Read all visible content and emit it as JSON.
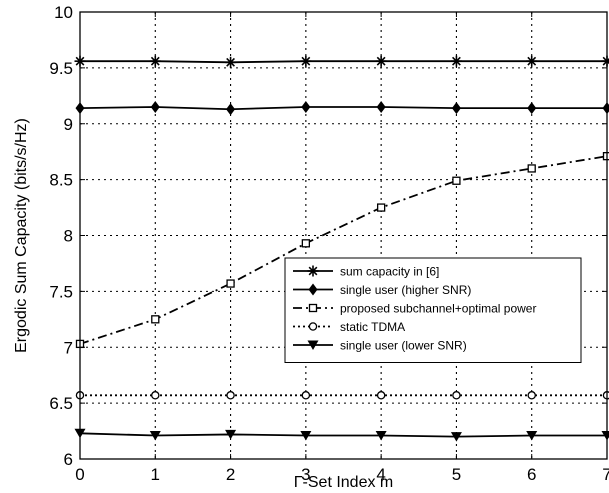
{
  "chart_data": {
    "type": "line",
    "xlabel": "Γ-Set Index m",
    "ylabel": "Ergodic Sum Capacity (bits/s/Hz)",
    "xlim": [
      0,
      7
    ],
    "ylim": [
      6,
      10
    ],
    "grid": true,
    "legend_position": "lower-right",
    "x": [
      0,
      1,
      2,
      3,
      4,
      5,
      6,
      7
    ],
    "xticks": [
      "0",
      "1",
      "2",
      "3",
      "4",
      "5",
      "6",
      "7"
    ],
    "yticks": [
      "6",
      "6.5",
      "7",
      "7.5",
      "8",
      "8.5",
      "9",
      "9.5",
      "10"
    ],
    "series": [
      {
        "name": "sum capacity in [6]",
        "marker": "star",
        "line": "solid",
        "values": [
          9.56,
          9.56,
          9.55,
          9.56,
          9.56,
          9.56,
          9.56,
          9.56
        ]
      },
      {
        "name": "single user (higher SNR)",
        "marker": "diamond",
        "line": "solid",
        "values": [
          9.14,
          9.15,
          9.13,
          9.15,
          9.15,
          9.14,
          9.14,
          9.14
        ]
      },
      {
        "name": "proposed subchannel+optimal power",
        "marker": "square",
        "line": "dashdot",
        "values": [
          7.03,
          7.25,
          7.57,
          7.93,
          8.25,
          8.49,
          8.6,
          8.71
        ]
      },
      {
        "name": "static TDMA",
        "marker": "circle",
        "line": "dotted",
        "values": [
          6.57,
          6.57,
          6.57,
          6.57,
          6.57,
          6.57,
          6.57,
          6.57
        ]
      },
      {
        "name": "single user (lower SNR)",
        "marker": "triangle-down",
        "line": "solid",
        "values": [
          6.23,
          6.21,
          6.22,
          6.21,
          6.21,
          6.2,
          6.21,
          6.21
        ]
      }
    ]
  }
}
